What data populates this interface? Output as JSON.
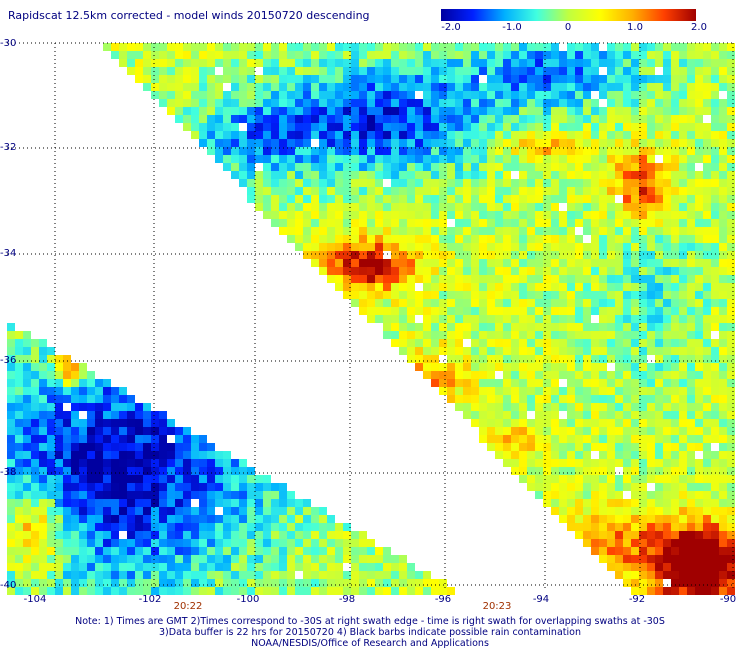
{
  "title": "Rapidscat 12.5km corrected - model winds 20150720 descending",
  "colorbar": {
    "ticks": [
      "-2.0",
      "-1.0",
      "0",
      "1.0",
      "2.0"
    ],
    "colors": [
      "#0000a0",
      "#0020ff",
      "#00b0ff",
      "#40ffe0",
      "#c0ff40",
      "#ffff00",
      "#ffb000",
      "#ff4000",
      "#a00000"
    ]
  },
  "axes": {
    "lat_labels": [
      "-30",
      "-32",
      "-34",
      "-36",
      "-38",
      "-40"
    ],
    "lon_labels": [
      "-104",
      "-102",
      "-100",
      "-98",
      "-96",
      "-94",
      "-92",
      "-90"
    ]
  },
  "times": [
    "20:22",
    "20:23"
  ],
  "notes": [
    "Note: 1) Times are GMT 2)Times correspond to -30S at right swath edge - time is right swath for overlapping swaths at -30S",
    "3)Data buffer is 22 hrs for 20150720 4) Black barbs indicate possible rain contamination",
    "NOAA/NESDIS/Office of Research and Applications"
  ]
}
